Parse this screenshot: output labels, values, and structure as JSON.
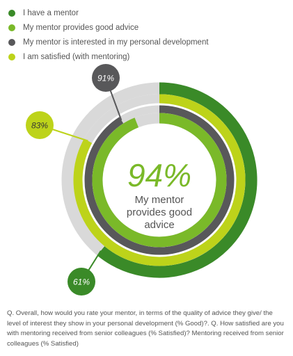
{
  "chart_data": {
    "type": "radial-bar",
    "ylim": [
      0,
      100
    ],
    "series": [
      {
        "name": "I have a mentor",
        "value": 61,
        "label": "61%",
        "color": "#3a8a28"
      },
      {
        "name": "I am satisfied (with mentoring)",
        "value": 83,
        "label": "83%",
        "color": "#bdd31a"
      },
      {
        "name": "My mentor is interested in my personal development",
        "value": 91,
        "label": "91%",
        "color": "#58585a"
      },
      {
        "name": "My mentor provides good advice",
        "value": 94,
        "label": "94%",
        "color": "#7ab929"
      }
    ],
    "center": {
      "value_label": "94%",
      "text": [
        "My mentor",
        "provides good",
        "advice"
      ]
    },
    "track_color": "#d9d9d9",
    "legend_position": "top-left"
  },
  "legend": [
    {
      "label": "I have a mentor",
      "color": "#3a8a28"
    },
    {
      "label": "My mentor provides good advice",
      "color": "#7ab929"
    },
    {
      "label": "My mentor is interested in my personal development",
      "color": "#58585a"
    },
    {
      "label": "I am satisfied (with mentoring)",
      "color": "#bdd31a"
    }
  ],
  "footnote": "Q. Overall, how would you rate your mentor, in terms of the quality of advice they give/ the level of interest they show in your personal development (% Good)?. Q. How satisfied are you with mentoring received from senior colleagues (% Satisfied)? Mentoring received from senior colleagues (% Satisfied)"
}
